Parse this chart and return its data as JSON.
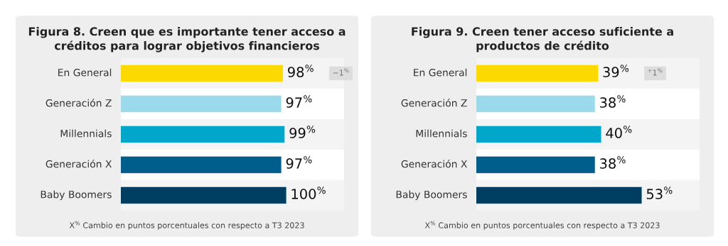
{
  "chart_data": [
    {
      "type": "bar",
      "orientation": "horizontal",
      "title": "Figura 8. Creen que es importante tener acceso a\ncréditos para lograr objetivos financieros",
      "categories": [
        "En General",
        "Generación Z",
        "Millennials",
        "Generación X",
        "Baby Boomers"
      ],
      "values": [
        98,
        97,
        99,
        97,
        100
      ],
      "colors": [
        "#fcd900",
        "#9adaea",
        "#00a7cb",
        "#005e8c",
        "#003e61"
      ],
      "value_labels": [
        "98$^{%}$",
        "97$^{%}$",
        "99$^{%}$",
        "97$^{%}$",
        "100$^{%}$"
      ],
      "annotations": [
        "−1$^{%}$",
        "X$^{%}$ Cambio en puntos porcentuales con respecto a T3 2023"
      ]
    },
    {
      "type": "bar",
      "orientation": "horizontal",
      "title": "Figura 9. Creen tener acceso suficiente a\nproductos de crédito",
      "categories": [
        "En General",
        "Generación Z",
        "Millennials",
        "Generación X",
        "Baby Boomers"
      ],
      "values": [
        39,
        38,
        40,
        38,
        53
      ],
      "colors": [
        "#fcd900",
        "#9adaea",
        "#00a7cb",
        "#005e8c",
        "#003e61"
      ],
      "value_labels": [
        "39$^{%}$",
        "38$^{%}$",
        "40$^{%}$",
        "38$^{%}$",
        "53$^{%}$"
      ],
      "annotations": [
        "$^{+}$1$^{%}$",
        "X$^{%}$ Cambio en puntos porcentuales con respecto a T3 2023"
      ]
    }
  ]
}
